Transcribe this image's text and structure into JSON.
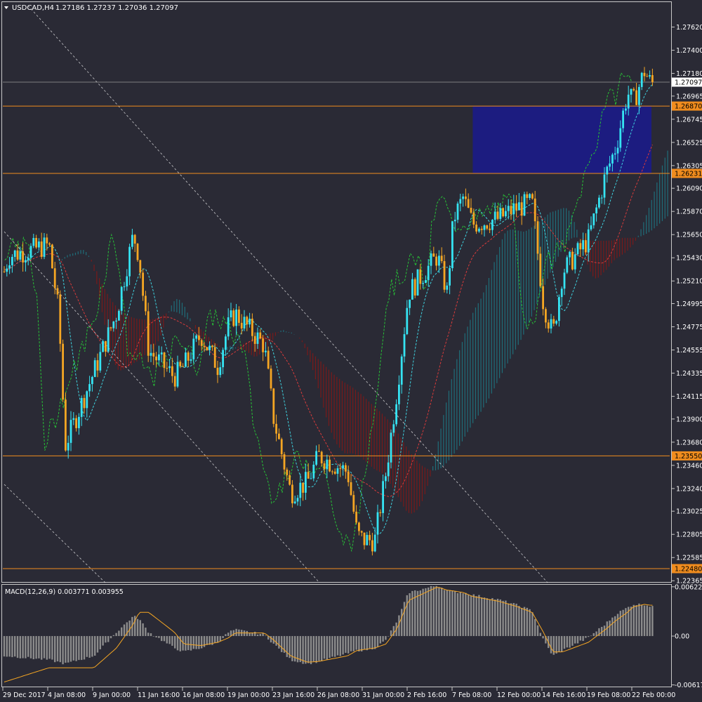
{
  "header": {
    "symbol": "USDCAD,H4",
    "ohlc": "1.27186 1.27237 1.27036 1.27097"
  },
  "colors": {
    "background": "#2a2a35",
    "axis_text": "#ffffff",
    "bull_candle": "#35e3f2",
    "bear_candle": "#f5a623",
    "level_line": "#f08c1e",
    "level_tag": "#f08c1e",
    "current_tag": "#ffffff",
    "zone_fill": "#1c1c80",
    "kumo_bear": "#7a1a1a",
    "kumo_bull": "#1f6e7a",
    "tenkan": "#3fd3e0",
    "kijun": "#d93b3b",
    "chikou": "#27c236",
    "macd_hist": "#8c8c8c",
    "macd_signal": "#f5a623",
    "trendline": "#ffffff"
  },
  "price_axis": {
    "ticks": [
      "1.27620",
      "1.27400",
      "1.27180",
      "1.26965",
      "1.26745",
      "1.26525",
      "1.26305",
      "1.26090",
      "1.25870",
      "1.25650",
      "1.25430",
      "1.25210",
      "1.24995",
      "1.24775",
      "1.24555",
      "1.24335",
      "1.24115",
      "1.23900",
      "1.23680",
      "1.23460",
      "1.23240",
      "1.23025",
      "1.22805",
      "1.22585",
      "1.22365"
    ]
  },
  "levels": [
    {
      "price": 1.2687,
      "label": "1.26870"
    },
    {
      "price": 1.26231,
      "label": "1.26231"
    },
    {
      "price": 1.2355,
      "label": "1.23550"
    },
    {
      "price": 1.2248,
      "label": "1.22480"
    }
  ],
  "current_price": {
    "price": 1.27097,
    "label": "1.27097"
  },
  "macd": {
    "label": "MACD(12,26,9) 0.003771 0.003955",
    "ticks": [
      "0.006226",
      "0.00",
      "-0.006171"
    ]
  },
  "time_axis": {
    "labels": [
      "29 Dec 2017",
      "4 Jan 08:00",
      "9 Jan 00:00",
      "11 Jan 16:00",
      "16 Jan 08:00",
      "19 Jan 00:00",
      "23 Jan 16:00",
      "26 Jan 08:00",
      "31 Jan 00:00",
      "2 Feb 16:00",
      "7 Feb 08:00",
      "12 Feb 00:00",
      "14 Feb 16:00",
      "19 Feb 08:00",
      "22 Feb 00:00"
    ]
  },
  "chart_data": {
    "type": "candlestick",
    "title": "USDCAD,H4",
    "ylim": [
      1.2236,
      1.2785
    ],
    "macd_ylim": [
      -0.0062,
      0.0063
    ],
    "price_path": [
      [
        "29 Dec 2017",
        1.253
      ],
      [
        "29 Dec 2017 16:00",
        1.2545
      ],
      [
        "4 Jan 08:00",
        1.2555
      ],
      [
        "5 Jan 08:00",
        1.249
      ],
      [
        "6 Jan 00:00",
        1.2365
      ],
      [
        "9 Jan 00:00",
        1.2435
      ],
      [
        "10 Jan 08:00",
        1.249
      ],
      [
        "11 Jan 08:00",
        1.2565
      ],
      [
        "11 Jan 16:00",
        1.2545
      ],
      [
        "12 Jan 16:00",
        1.2455
      ],
      [
        "15 Jan 08:00",
        1.243
      ],
      [
        "16 Jan 08:00",
        1.244
      ],
      [
        "17 Jan 08:00",
        1.247
      ],
      [
        "18 Jan 08:00",
        1.244
      ],
      [
        "19 Jan 00:00",
        1.248
      ],
      [
        "19 Jan 16:00",
        1.249
      ],
      [
        "22 Jan 16:00",
        1.246
      ],
      [
        "23 Jan 16:00",
        1.239
      ],
      [
        "24 Jan 16:00",
        1.232
      ],
      [
        "25 Jan 16:00",
        1.233
      ],
      [
        "26 Jan 08:00",
        1.2355
      ],
      [
        "29 Jan 08:00",
        1.234
      ],
      [
        "30 Jan 08:00",
        1.228
      ],
      [
        "31 Jan 00:00",
        1.2275
      ],
      [
        "31 Jan 16:00",
        1.2275
      ],
      [
        "1 Feb 08:00",
        1.234
      ],
      [
        "2 Feb 00:00",
        1.242
      ],
      [
        "2 Feb 16:00",
        1.251
      ],
      [
        "5 Feb 16:00",
        1.2545
      ],
      [
        "6 Feb 16:00",
        1.251
      ],
      [
        "7 Feb 08:00",
        1.258
      ],
      [
        "8 Feb 08:00",
        1.26
      ],
      [
        "9 Feb 08:00",
        1.2575
      ],
      [
        "12 Feb 00:00",
        1.258
      ],
      [
        "13 Feb 00:00",
        1.259
      ],
      [
        "14 Feb 00:00",
        1.2595
      ],
      [
        "14 Feb 16:00",
        1.25
      ],
      [
        "15 Feb 16:00",
        1.247
      ],
      [
        "16 Feb 16:00",
        1.253
      ],
      [
        "19 Feb 08:00",
        1.256
      ],
      [
        "20 Feb 08:00",
        1.262
      ],
      [
        "21 Feb 00:00",
        1.265
      ],
      [
        "21 Feb 16:00",
        1.27
      ],
      [
        "22 Feb 00:00",
        1.269
      ],
      [
        "22 Feb 16:00",
        1.272
      ],
      [
        "23 Feb 00:00",
        1.271
      ]
    ],
    "macd_histogram": [
      [
        "29 Dec 2017",
        -0.0025
      ],
      [
        "4 Jan 08:00",
        -0.003
      ],
      [
        "6 Jan 00:00",
        -0.0035
      ],
      [
        "9 Jan 00:00",
        -0.0025
      ],
      [
        "10 Jan 08:00",
        0.0005
      ],
      [
        "11 Jan 08:00",
        0.0025
      ],
      [
        "11 Jan 16:00",
        0.0022
      ],
      [
        "12 Jan 16:00",
        0.0005
      ],
      [
        "15 Jan 08:00",
        -0.0015
      ],
      [
        "16 Jan 08:00",
        -0.002
      ],
      [
        "17 Jan 08:00",
        -0.0015
      ],
      [
        "18 Jan 08:00",
        -0.0008
      ],
      [
        "19 Jan 00:00",
        0.0005
      ],
      [
        "19 Jan 16:00",
        0.0008
      ],
      [
        "22 Jan 16:00",
        0.0002
      ],
      [
        "23 Jan 16:00",
        -0.001
      ],
      [
        "24 Jan 16:00",
        -0.003
      ],
      [
        "25 Jan 16:00",
        -0.0035
      ],
      [
        "26 Jan 08:00",
        -0.0032
      ],
      [
        "29 Jan 08:00",
        -0.0022
      ],
      [
        "30 Jan 08:00",
        -0.0018
      ],
      [
        "31 Jan 00:00",
        -0.0018
      ],
      [
        "31 Jan 16:00",
        -0.0015
      ],
      [
        "1 Feb 08:00",
        -0.0005
      ],
      [
        "2 Feb 00:00",
        0.002
      ],
      [
        "2 Feb 16:00",
        0.0055
      ],
      [
        "5 Feb 16:00",
        0.0064
      ],
      [
        "6 Feb 16:00",
        0.0058
      ],
      [
        "7 Feb 08:00",
        0.0056
      ],
      [
        "8 Feb 08:00",
        0.0055
      ],
      [
        "9 Feb 08:00",
        0.0052
      ],
      [
        "12 Feb 00:00",
        0.0046
      ],
      [
        "13 Feb 00:00",
        0.004
      ],
      [
        "14 Feb 00:00",
        0.0032
      ],
      [
        "14 Feb 16:00",
        -0.0005
      ],
      [
        "15 Feb 16:00",
        -0.0025
      ],
      [
        "16 Feb 16:00",
        -0.0018
      ],
      [
        "19 Feb 08:00",
        -0.0002
      ],
      [
        "20 Feb 08:00",
        0.0015
      ],
      [
        "21 Feb 00:00",
        0.0028
      ],
      [
        "21 Feb 16:00",
        0.0036
      ],
      [
        "22 Feb 00:00",
        0.004
      ],
      [
        "22 Feb 16:00",
        0.004
      ],
      [
        "23 Feb 00:00",
        0.0038
      ]
    ],
    "macd_signal": [
      [
        "29 Dec 2017",
        -0.0058
      ],
      [
        "4 Jan 08:00",
        -0.004
      ],
      [
        "6 Jan 00:00",
        -0.004
      ],
      [
        "9 Jan 00:00",
        -0.004
      ],
      [
        "10 Jan 08:00",
        -0.0015
      ],
      [
        "11 Jan 08:00",
        0.0015
      ],
      [
        "11 Jan 16:00",
        0.003
      ],
      [
        "12 Jan 16:00",
        0.003
      ],
      [
        "15 Jan 08:00",
        0.0005
      ],
      [
        "16 Jan 08:00",
        -0.001
      ],
      [
        "17 Jan 08:00",
        -0.0012
      ],
      [
        "18 Jan 08:00",
        -0.0008
      ],
      [
        "19 Jan 00:00",
        -0.0002
      ],
      [
        "19 Jan 16:00",
        0.0004
      ],
      [
        "22 Jan 16:00",
        0.0004
      ],
      [
        "23 Jan 16:00",
        -0.0005
      ],
      [
        "24 Jan 16:00",
        -0.0025
      ],
      [
        "25 Jan 16:00",
        -0.0033
      ],
      [
        "26 Jan 08:00",
        -0.0032
      ],
      [
        "29 Jan 08:00",
        -0.0025
      ],
      [
        "30 Jan 08:00",
        -0.0018
      ],
      [
        "31 Jan 00:00",
        -0.0017
      ],
      [
        "31 Jan 16:00",
        -0.0015
      ],
      [
        "1 Feb 08:00",
        -0.001
      ],
      [
        "2 Feb 00:00",
        0.001
      ],
      [
        "2 Feb 16:00",
        0.0045
      ],
      [
        "5 Feb 16:00",
        0.0062
      ],
      [
        "6 Feb 16:00",
        0.0058
      ],
      [
        "7 Feb 08:00",
        0.0057
      ],
      [
        "8 Feb 08:00",
        0.0055
      ],
      [
        "9 Feb 08:00",
        0.005
      ],
      [
        "12 Feb 00:00",
        0.0044
      ],
      [
        "13 Feb 00:00",
        0.0038
      ],
      [
        "14 Feb 00:00",
        0.003
      ],
      [
        "14 Feb 16:00",
        0.0005
      ],
      [
        "15 Feb 16:00",
        -0.002
      ],
      [
        "16 Feb 16:00",
        -0.002
      ],
      [
        "19 Feb 08:00",
        -0.0008
      ],
      [
        "20 Feb 08:00",
        0.0008
      ],
      [
        "21 Feb 00:00",
        0.002
      ],
      [
        "21 Feb 16:00",
        0.003
      ],
      [
        "22 Feb 00:00",
        0.0037
      ],
      [
        "22 Feb 16:00",
        0.004
      ],
      [
        "23 Feb 00:00",
        0.0039
      ]
    ],
    "supply_zone": {
      "from": "9 Feb 08:00",
      "to": "23 Feb 00:00",
      "price_high": 1.2687,
      "price_low": 1.26231
    }
  }
}
